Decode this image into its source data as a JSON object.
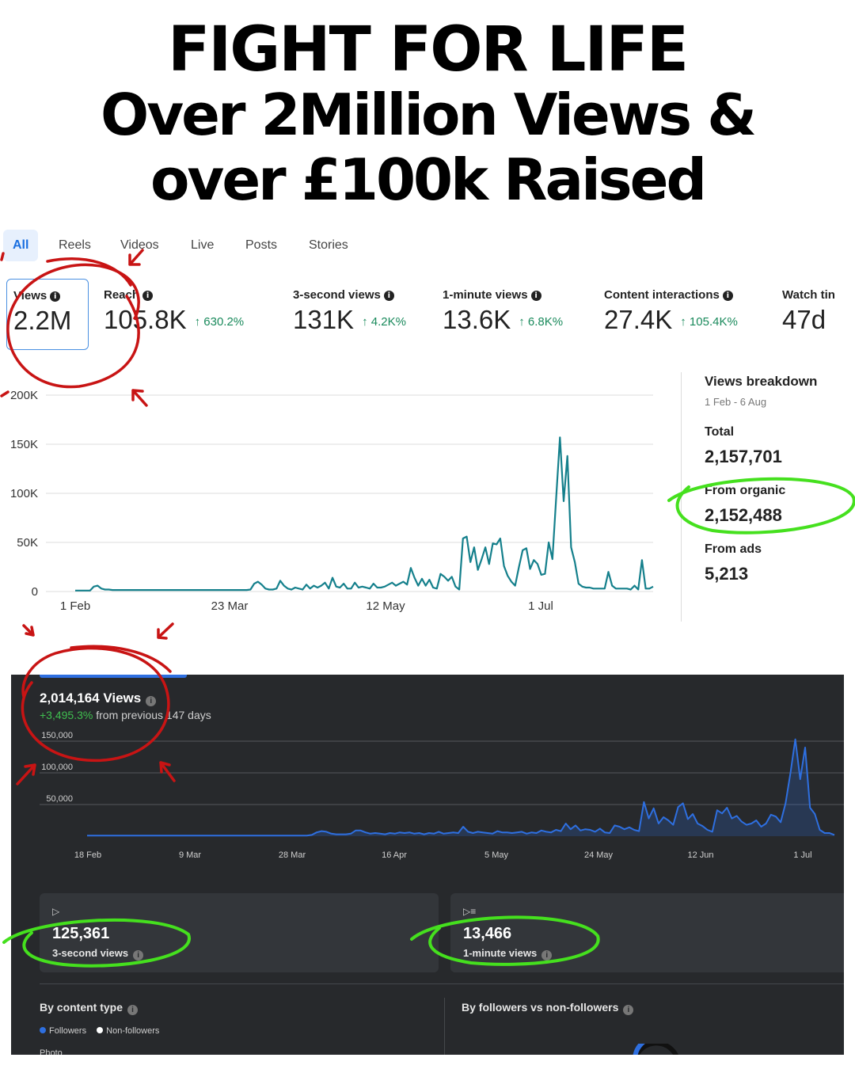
{
  "headline": {
    "line1": "FIGHT FOR LIFE",
    "line2": "Over 2Million Views &",
    "line3": "over £100k Raised"
  },
  "tabs": [
    "All",
    "Reels",
    "Videos",
    "Live",
    "Posts",
    "Stories"
  ],
  "active_tab": "All",
  "metrics": [
    {
      "label": "Views",
      "value": "2.2M",
      "change": ""
    },
    {
      "label": "Reach",
      "value": "105.8K",
      "change": "↑ 630.2%"
    },
    {
      "label": "3-second views",
      "value": "131K",
      "change": "↑ 4.2K%"
    },
    {
      "label": "1-minute views",
      "value": "13.6K",
      "change": "↑ 6.8K%"
    },
    {
      "label": "Content interactions",
      "value": "27.4K",
      "change": "↑ 105.4K%"
    },
    {
      "label": "Watch tin",
      "value": "47d",
      "change": ""
    }
  ],
  "breakdown": {
    "title": "Views breakdown",
    "range": "1 Feb - 6 Aug",
    "total_label": "Total",
    "total": "2,157,701",
    "organic_label": "From organic",
    "organic": "2,152,488",
    "ads_label": "From ads",
    "ads": "5,213"
  },
  "chart_data": [
    {
      "type": "line",
      "title": "",
      "x_ticks": [
        "1 Feb",
        "23 Mar",
        "12 May",
        "1 Jul"
      ],
      "y_ticks": [
        "0",
        "50K",
        "100K",
        "150K",
        "200K"
      ],
      "ylim": [
        0,
        200000
      ],
      "color": "#15808c",
      "series": [
        {
          "values": [
            1000,
            1000,
            1000,
            1000,
            1000,
            5000,
            6000,
            3000,
            2000,
            2000,
            1500,
            1500,
            1500,
            1500,
            1500,
            1500,
            1500,
            1500,
            1500,
            1500,
            1500,
            1500,
            1500,
            1500,
            1500,
            1500,
            1500,
            1500,
            1500,
            1500,
            1500,
            1500,
            1500,
            1500,
            1500,
            1500,
            1500,
            1500,
            1500,
            1500,
            1500,
            1500,
            1500,
            1500,
            1500,
            1500,
            1500,
            2000,
            8000,
            10000,
            7000,
            3000,
            2000,
            2000,
            3000,
            11000,
            6000,
            3000,
            2000,
            4000,
            3000,
            2000,
            7000,
            3000,
            6000,
            4000,
            6000,
            9000,
            3000,
            14000,
            5000,
            4000,
            8000,
            3000,
            3000,
            9000,
            4000,
            5000,
            4000,
            3000,
            8000,
            4000,
            4000,
            5000,
            7000,
            9000,
            6000,
            8000,
            10000,
            7000,
            24000,
            14000,
            6000,
            13000,
            6000,
            12000,
            4000,
            3000,
            18000,
            15000,
            11000,
            15000,
            5000,
            2000,
            54000,
            56000,
            30000,
            45000,
            22000,
            33000,
            45000,
            28000,
            49000,
            48000,
            54000,
            26000,
            16000,
            10000,
            6000,
            25000,
            42000,
            44000,
            23000,
            32000,
            28000,
            17000,
            18000,
            50000,
            33000,
            95000,
            157000,
            92000,
            138000,
            45000,
            30000,
            8000,
            5000,
            4000,
            4000,
            3000,
            3000,
            3000,
            3000,
            20000,
            6000,
            3000,
            3000,
            3000,
            3000,
            2000,
            6000,
            2000,
            32000,
            3000,
            3000,
            5000
          ]
        }
      ]
    },
    {
      "type": "area",
      "title": "",
      "x_ticks": [
        "18 Feb",
        "9 Mar",
        "28 Mar",
        "16 Apr",
        "5 May",
        "24 May",
        "12 Jun",
        "1 Jul"
      ],
      "y_ticks": [
        "50,000",
        "100,000",
        "150,000"
      ],
      "ylim": [
        0,
        150000
      ],
      "color": "#2e6fe0",
      "series": [
        {
          "values": [
            1000,
            1000,
            1000,
            1000,
            1000,
            1000,
            1000,
            1000,
            1000,
            1000,
            1000,
            1000,
            1000,
            1000,
            1000,
            1000,
            1000,
            1000,
            1000,
            1000,
            1000,
            1000,
            1000,
            1000,
            1000,
            1000,
            1000,
            1000,
            1000,
            1000,
            1000,
            1000,
            1000,
            1000,
            1000,
            1000,
            1000,
            1000,
            1000,
            1000,
            1000,
            1000,
            1000,
            1000,
            1000,
            1000,
            2000,
            6000,
            8000,
            7000,
            4000,
            3000,
            3000,
            3000,
            4000,
            9000,
            9000,
            6000,
            4000,
            5000,
            4000,
            3000,
            5000,
            4000,
            6000,
            5000,
            6000,
            4000,
            5000,
            3000,
            5000,
            4000,
            7000,
            4000,
            5000,
            6000,
            5000,
            15000,
            7000,
            5000,
            7000,
            6000,
            5000,
            4000,
            8000,
            6000,
            6000,
            5000,
            6000,
            7000,
            4000,
            6000,
            5000,
            9000,
            7000,
            6000,
            10000,
            8000,
            20000,
            11000,
            17000,
            9000,
            11000,
            10000,
            7000,
            12000,
            6000,
            5000,
            17000,
            15000,
            11000,
            14000,
            10000,
            8000,
            54000,
            28000,
            44000,
            20000,
            30000,
            25000,
            18000,
            46000,
            52000,
            27000,
            35000,
            20000,
            16000,
            10000,
            7000,
            41000,
            36000,
            45000,
            28000,
            32000,
            23000,
            18000,
            20000,
            25000,
            15000,
            20000,
            34000,
            31000,
            22000,
            52000,
            100000,
            153000,
            90000,
            140000,
            45000,
            35000,
            10000,
            5000,
            5000,
            2000
          ]
        }
      ]
    }
  ],
  "dark": {
    "title": "2,014,164 Views",
    "change": "+3,495.3%",
    "change_suffix": " from previous 147 days",
    "card1_value": "125,361",
    "card1_label": "3-second views",
    "card2_value": "13,466",
    "card2_label": "1-minute views",
    "section1": "By content type",
    "section2": "By followers vs non-followers",
    "legend_followers": "Followers",
    "legend_nonfollowers": "Non-followers",
    "row_label": "Photo"
  }
}
